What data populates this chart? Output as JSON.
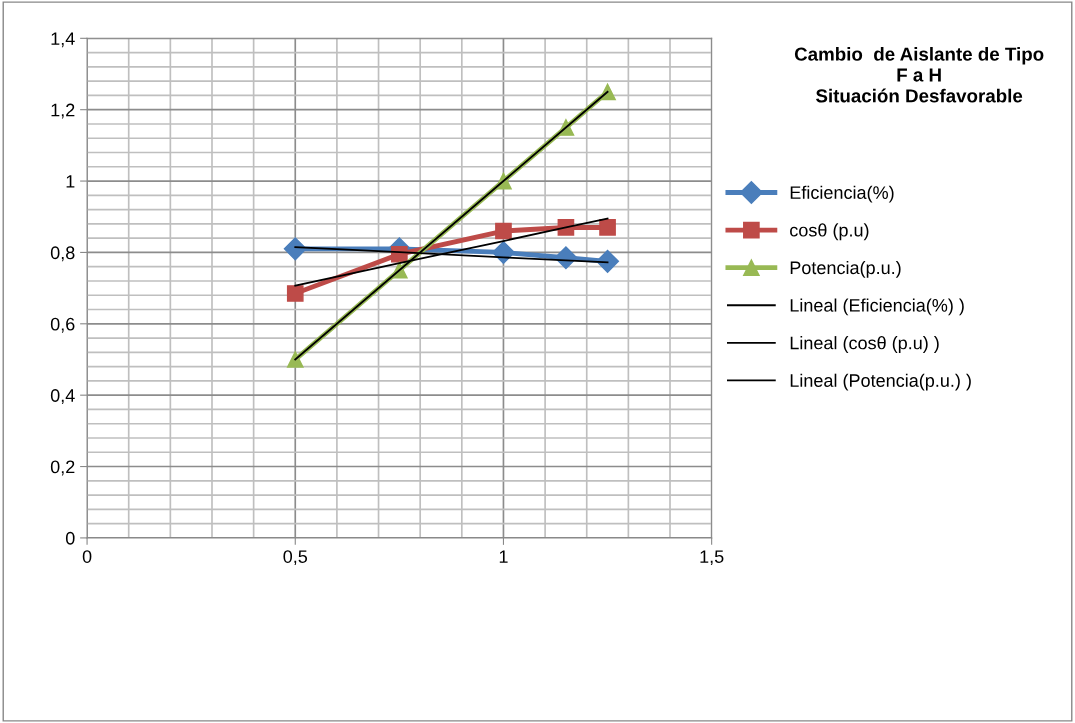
{
  "chart_data": {
    "type": "line",
    "title": "Cambio  de Aislante de Tipo\nF a H\nSituación Desfavorable",
    "x": [
      0.5,
      0.75,
      1,
      1.15,
      1.25
    ],
    "series": [
      {
        "name": "Eficiencia(%)",
        "color": "#4a7ebb",
        "marker": "diamond",
        "values": [
          0.81,
          0.81,
          0.8,
          0.785,
          0.775
        ]
      },
      {
        "name": "cosθ (p.u)",
        "color": "#be4b48",
        "marker": "square",
        "values": [
          0.685,
          0.795,
          0.86,
          0.87,
          0.87
        ]
      },
      {
        "name": "Potencia(p.u.)",
        "color": "#98b954",
        "marker": "triangle",
        "values": [
          0.5,
          0.75,
          1.0,
          1.15,
          1.25
        ]
      },
      {
        "name": "Lineal (Eficiencia(%) )",
        "color": "#000000",
        "marker": "none",
        "values": [
          0.815,
          0.801,
          0.786,
          0.778,
          0.772
        ]
      },
      {
        "name": "Lineal (cosθ (p.u) )",
        "color": "#000000",
        "marker": "none",
        "values": [
          0.707,
          0.77,
          0.832,
          0.87,
          0.895
        ]
      },
      {
        "name": "Lineal (Potencia(p.u.) )",
        "color": "#000000",
        "marker": "none",
        "values": [
          0.5,
          0.75,
          1.0,
          1.15,
          1.25
        ]
      }
    ],
    "xlim": [
      0,
      1.5
    ],
    "xticks": [
      {
        "value": 0,
        "label": "0"
      },
      {
        "value": 0.5,
        "label": "0,5"
      },
      {
        "value": 1,
        "label": "1"
      },
      {
        "value": 1.5,
        "label": "1,5"
      }
    ],
    "ylim": [
      0,
      1.4
    ],
    "yticks": [
      {
        "value": 0,
        "label": "0"
      },
      {
        "value": 0.2,
        "label": "0,2"
      },
      {
        "value": 0.4,
        "label": "0,4"
      },
      {
        "value": 0.6,
        "label": "0,6"
      },
      {
        "value": 0.8,
        "label": "0,8"
      },
      {
        "value": 1,
        "label": "1"
      },
      {
        "value": 1.2,
        "label": "1,2"
      },
      {
        "value": 1.4,
        "label": "1,4"
      }
    ],
    "grid": true,
    "legend": "right"
  }
}
